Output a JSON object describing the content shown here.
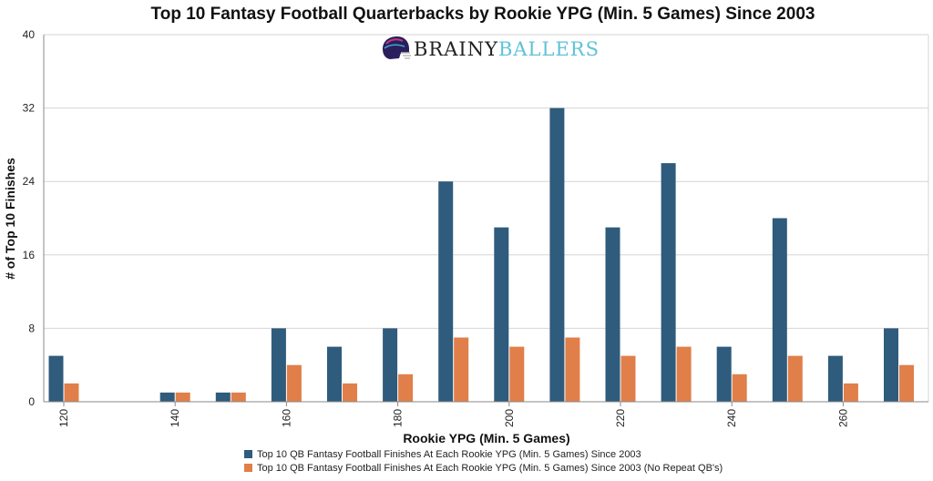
{
  "chart_data": {
    "type": "bar",
    "title": "Top 10 Fantasy Football Quarterbacks by Rookie YPG (Min. 5 Games) Since 2003",
    "xlabel": "Rookie YPG (Min. 5 Games)",
    "ylabel": "# of Top 10 Finishes",
    "ylim": [
      0,
      40
    ],
    "yticks": [
      0,
      8,
      16,
      24,
      32,
      40
    ],
    "grid": true,
    "legend_position": "bottom-center",
    "categories": [
      120,
      130,
      140,
      150,
      160,
      170,
      180,
      190,
      200,
      210,
      220,
      230,
      240,
      250,
      260,
      270
    ],
    "xtick_labels": [
      "120",
      "140",
      "160",
      "180",
      "200",
      "220",
      "240",
      "260"
    ],
    "series": [
      {
        "name": "Top 10 QB Fantasy Football Finishes At Each Rookie YPG (Min. 5 Games) Since 2003",
        "color": "#2f5b7c",
        "values": [
          5,
          0,
          1,
          1,
          8,
          6,
          8,
          24,
          19,
          32,
          19,
          26,
          6,
          20,
          5,
          8
        ]
      },
      {
        "name": "Top 10 QB Fantasy Football Finishes At Each Rookie YPG (Min. 5 Games) Since 2003 (No Repeat QB's)",
        "color": "#e07f4a",
        "values": [
          2,
          0,
          1,
          1,
          4,
          2,
          3,
          7,
          6,
          7,
          5,
          6,
          3,
          5,
          2,
          4
        ]
      }
    ]
  },
  "logo": {
    "part1": "BRAINY",
    "part2": "BALLERS",
    "icon": "football-helmet-icon"
  }
}
